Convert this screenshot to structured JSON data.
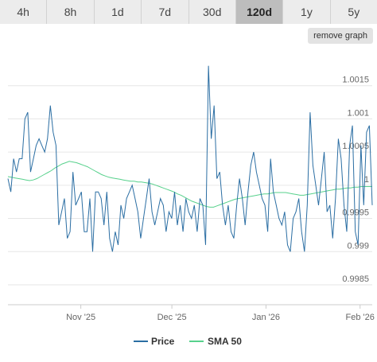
{
  "range_selector": {
    "buttons": [
      "4h",
      "8h",
      "1d",
      "7d",
      "30d",
      "120d",
      "1y",
      "5y"
    ],
    "active": "120d"
  },
  "toolbar": {
    "remove_graph_label": "remove graph"
  },
  "colors": {
    "price": "#2b6ea3",
    "sma50": "#57d18c",
    "active_button": "#bdbdbd",
    "grid": "#e6e6e6"
  },
  "chart_data": {
    "type": "line",
    "x_tick_labels": [
      "Nov '25",
      "Dec '25",
      "Jan '26",
      "Feb '26"
    ],
    "y_tick_labels": [
      "0.9985",
      "0.999",
      "0.9995",
      "1",
      "1.0005",
      "1.001",
      "1.0015"
    ],
    "ylim": [
      0.9982,
      1.002
    ],
    "xlim": [
      0,
      120
    ],
    "x_ticks": [
      24,
      54,
      85,
      116
    ],
    "grid": true,
    "legend_position": "bottom-center",
    "series": [
      {
        "name": "Price",
        "values": [
          1.0001,
          0.9999,
          1.0004,
          1.0002,
          1.0004,
          1.0004,
          1.001,
          1.0011,
          1.0002,
          1.0004,
          1.0006,
          1.0007,
          1.0006,
          1.0005,
          1.0007,
          1.0012,
          1.0008,
          1.0006,
          0.9994,
          0.9996,
          0.9998,
          0.9992,
          0.9993,
          1.0002,
          0.9997,
          0.9998,
          0.9999,
          0.9993,
          0.9993,
          0.9998,
          0.999,
          0.9999,
          0.9999,
          0.9998,
          0.9994,
          0.9999,
          0.9992,
          0.999,
          0.9993,
          0.9991,
          0.9997,
          0.9995,
          0.9998,
          0.9999,
          1.0,
          0.9998,
          0.9996,
          0.9992,
          0.9995,
          0.9998,
          1.0001,
          0.9996,
          0.9994,
          0.9996,
          0.9998,
          0.9997,
          0.9993,
          0.9996,
          0.9995,
          0.9999,
          0.9994,
          0.9997,
          0.9993,
          0.9998,
          0.9996,
          0.9995,
          0.9997,
          0.9993,
          0.9998,
          0.9997,
          0.9991,
          1.0018,
          1.0007,
          1.0012,
          1.0001,
          1.0002,
          0.9997,
          0.9994,
          0.9997,
          0.9993,
          0.9992,
          0.9997,
          1.0001,
          0.9998,
          0.9994,
          0.9999,
          1.0003,
          1.0005,
          1.0002,
          1.0,
          0.9998,
          0.9997,
          0.9993,
          1.0004,
          0.9999,
          0.9997,
          0.9995,
          0.9994,
          0.9996,
          0.9991,
          0.999,
          0.9995,
          0.9996,
          0.9998,
          0.9993,
          0.999,
          0.9997,
          1.0011,
          1.0003,
          1.0,
          0.9997,
          1.0001,
          1.0005,
          0.9996,
          0.9997,
          0.9992,
          0.9998,
          1.0007,
          1.0004,
          0.9997,
          0.9993,
          1.0006,
          1.0009,
          0.9993,
          0.9991,
          1.0006,
          0.9997,
          1.0008,
          1.0009,
          0.9997
        ]
      },
      {
        "name": "SMA 50",
        "values": [
          1.00013,
          1.00012,
          1.00011,
          1.0001,
          1.00009,
          1.00008,
          1.00007,
          1.00008,
          1.0001,
          1.00013,
          1.00016,
          1.00019,
          1.00022,
          1.00026,
          1.00029,
          1.00032,
          1.00034,
          1.00036,
          1.00035,
          1.00034,
          1.00032,
          1.0003,
          1.00028,
          1.00025,
          1.00022,
          1.00019,
          1.00016,
          1.00014,
          1.00012,
          1.00011,
          1.0001,
          1.00009,
          1.00008,
          1.00007,
          1.00006,
          1.00006,
          1.00005,
          1.00005,
          1.00004,
          1.00003,
          1.00002,
          1.0,
          0.99998,
          0.99996,
          0.99994,
          0.99992,
          0.9999,
          0.99987,
          0.99985,
          0.99982,
          0.99979,
          0.99976,
          0.99974,
          0.99972,
          0.9997,
          0.99968,
          0.99967,
          0.99967,
          0.99969,
          0.99971,
          0.99973,
          0.99975,
          0.99977,
          0.99979,
          0.9998,
          0.99981,
          0.99982,
          0.99983,
          0.99984,
          0.99985,
          0.99986,
          0.99987,
          0.99987,
          0.99988,
          0.99989,
          0.99989,
          0.99989,
          0.99989,
          0.99988,
          0.99987,
          0.99986,
          0.99985,
          0.99985,
          0.99986,
          0.99987,
          0.99988,
          0.99989,
          0.9999,
          0.99991,
          0.99992,
          0.99993,
          0.99994,
          0.99994,
          0.99995,
          0.99996,
          0.99996,
          0.99997,
          0.99997,
          0.99998,
          0.99998,
          0.99998,
          0.99998
        ]
      }
    ]
  }
}
